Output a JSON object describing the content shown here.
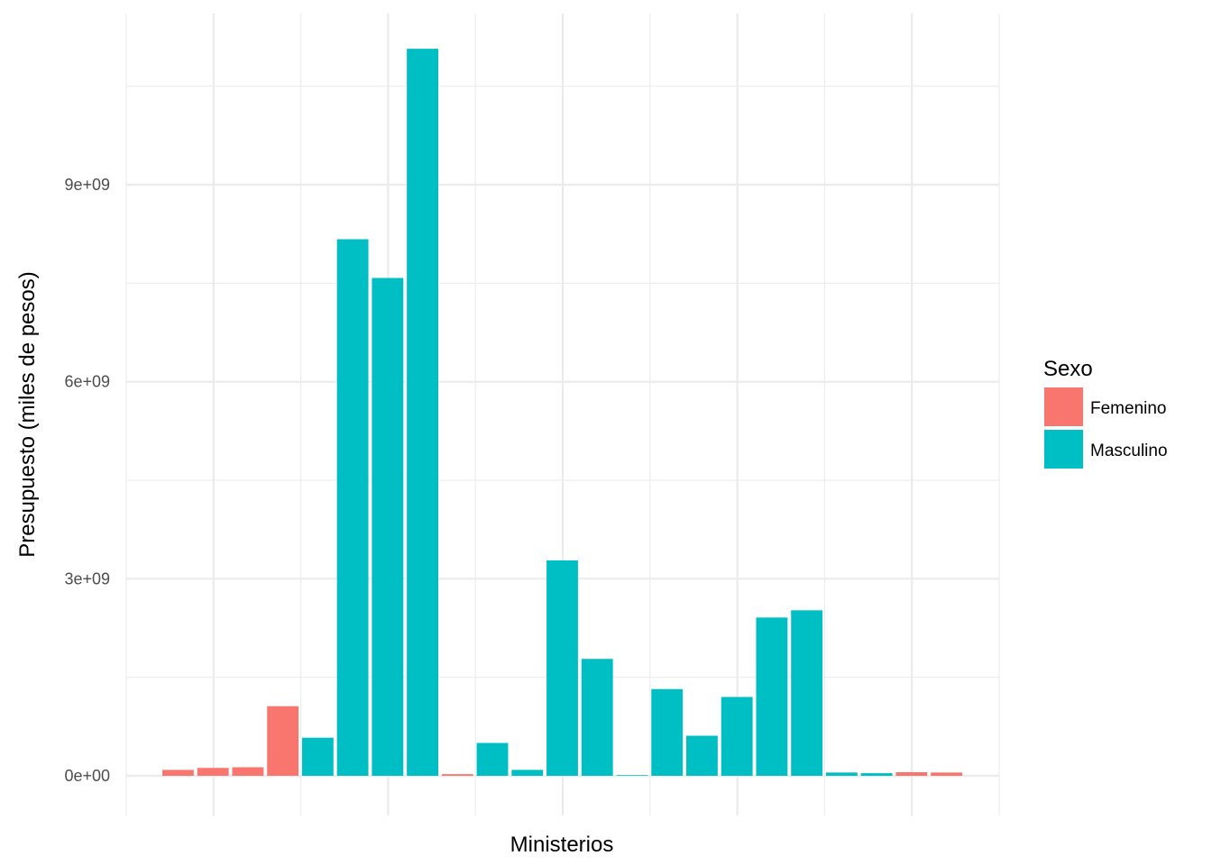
{
  "chart_data": {
    "type": "bar",
    "title": "",
    "xlabel": "Ministerios",
    "ylabel": "Presupuesto (miles de pesos)",
    "ylim": [
      -100000000.0,
      11500000000.0
    ],
    "yticks": [
      0,
      3000000000,
      6000000000,
      9000000000
    ],
    "ytick_labels": [
      "0e+00",
      "3e+09",
      "6e+09",
      "9e+09"
    ],
    "grid": true,
    "legend": {
      "title": "Sexo",
      "placement": "right",
      "entries": [
        {
          "label": "Femenino",
          "color": "#F8766D"
        },
        {
          "label": "Masculino",
          "color": "#00BFC4"
        }
      ]
    },
    "colors": {
      "Femenino": "#F8766D",
      "Masculino": "#00BFC4"
    },
    "bars": [
      {
        "sexo": "Femenino",
        "value": 90000000
      },
      {
        "sexo": "Femenino",
        "value": 120000000
      },
      {
        "sexo": "Femenino",
        "value": 130000000
      },
      {
        "sexo": "Femenino",
        "value": 1060000000
      },
      {
        "sexo": "Masculino",
        "value": 580000000
      },
      {
        "sexo": "Masculino",
        "value": 8170000000
      },
      {
        "sexo": "Masculino",
        "value": 7580000000
      },
      {
        "sexo": "Masculino",
        "value": 11070000000
      },
      {
        "sexo": "Femenino",
        "value": 25000000
      },
      {
        "sexo": "Masculino",
        "value": 500000000
      },
      {
        "sexo": "Masculino",
        "value": 90000000
      },
      {
        "sexo": "Masculino",
        "value": 3280000000
      },
      {
        "sexo": "Masculino",
        "value": 1780000000
      },
      {
        "sexo": "Masculino",
        "value": 10000000
      },
      {
        "sexo": "Masculino",
        "value": 1320000000
      },
      {
        "sexo": "Masculino",
        "value": 610000000
      },
      {
        "sexo": "Masculino",
        "value": 1200000000
      },
      {
        "sexo": "Masculino",
        "value": 2410000000
      },
      {
        "sexo": "Masculino",
        "value": 2520000000
      },
      {
        "sexo": "Masculino",
        "value": 50000000
      },
      {
        "sexo": "Masculino",
        "value": 40000000
      },
      {
        "sexo": "Femenino",
        "value": 55000000
      },
      {
        "sexo": "Femenino",
        "value": 50000000
      }
    ]
  }
}
